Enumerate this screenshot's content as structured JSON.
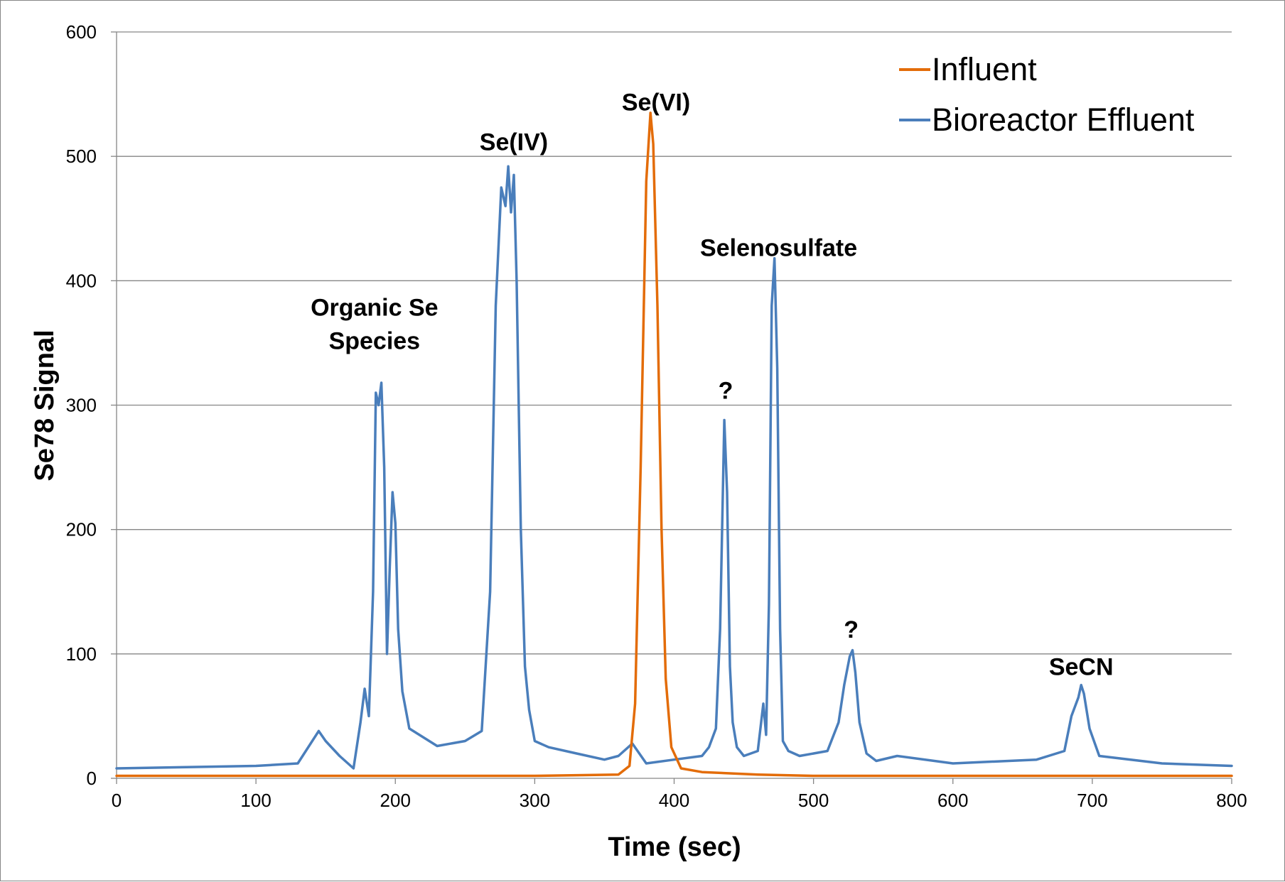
{
  "chart_data": {
    "type": "line",
    "title": "",
    "xlabel": "Time (sec)",
    "ylabel": "Se78 Signal",
    "xlim": [
      0,
      800
    ],
    "ylim": [
      0,
      600
    ],
    "x_ticks": [
      0,
      100,
      200,
      300,
      400,
      500,
      600,
      700,
      800
    ],
    "y_ticks": [
      0,
      100,
      200,
      300,
      400,
      500,
      600
    ],
    "x_tick_labels": [
      "0",
      "100",
      "200",
      "300",
      "400",
      "500",
      "600",
      "700",
      "800"
    ],
    "y_tick_labels": [
      "0",
      "100",
      "200",
      "300",
      "400",
      "500",
      "600"
    ],
    "grid": "horizontal",
    "legend_position": "top-right",
    "series": [
      {
        "name": "Influent",
        "color": "#E36C09",
        "x": [
          0,
          100,
          200,
          300,
          360,
          368,
          372,
          376,
          380,
          383,
          385,
          388,
          391,
          394,
          398,
          405,
          420,
          440,
          460,
          500,
          600,
          700,
          800
        ],
        "y": [
          2,
          2,
          2,
          2,
          3,
          10,
          60,
          250,
          480,
          535,
          510,
          380,
          200,
          80,
          25,
          8,
          5,
          4,
          3,
          2,
          2,
          2,
          2
        ]
      },
      {
        "name": "Bioreactor Effluent",
        "color": "#4A7EBB",
        "x": [
          0,
          50,
          100,
          130,
          145,
          150,
          160,
          170,
          175,
          178,
          181,
          184,
          186,
          188,
          190,
          192,
          194,
          196,
          198,
          200,
          202,
          205,
          210,
          230,
          250,
          262,
          268,
          272,
          276,
          279,
          281,
          283,
          285,
          287,
          290,
          293,
          296,
          300,
          310,
          330,
          350,
          360,
          370,
          380,
          400,
          420,
          425,
          430,
          433,
          436,
          438,
          440,
          442,
          445,
          450,
          460,
          464,
          466,
          468,
          470,
          472,
          474,
          476,
          478,
          482,
          490,
          510,
          518,
          522,
          526,
          528,
          530,
          533,
          538,
          545,
          560,
          600,
          660,
          680,
          685,
          690,
          692,
          694,
          698,
          705,
          750,
          800
        ],
        "y": [
          8,
          9,
          10,
          12,
          38,
          30,
          18,
          8,
          45,
          72,
          50,
          150,
          310,
          300,
          318,
          250,
          100,
          170,
          230,
          205,
          120,
          70,
          40,
          26,
          30,
          38,
          150,
          380,
          475,
          460,
          492,
          455,
          485,
          400,
          200,
          90,
          55,
          30,
          25,
          20,
          15,
          18,
          28,
          12,
          15,
          18,
          25,
          40,
          120,
          288,
          230,
          90,
          45,
          25,
          18,
          22,
          60,
          35,
          140,
          380,
          418,
          330,
          120,
          30,
          22,
          18,
          22,
          45,
          75,
          98,
          103,
          85,
          45,
          20,
          14,
          18,
          12,
          15,
          22,
          50,
          65,
          75,
          68,
          40,
          18,
          12,
          10
        ]
      }
    ],
    "annotations": [
      {
        "text": "Organic Se",
        "x": 185,
        "y": 372
      },
      {
        "text": "Species",
        "x": 185,
        "y": 345
      },
      {
        "text": "Se(IV)",
        "x": 285,
        "y": 505
      },
      {
        "text": "Se(VI)",
        "x": 387,
        "y": 537
      },
      {
        "text": "Selenosulfate",
        "x": 475,
        "y": 420
      },
      {
        "text": "?",
        "x": 437,
        "y": 305
      },
      {
        "text": "?",
        "x": 527,
        "y": 113
      },
      {
        "text": "SeCN",
        "x": 692,
        "y": 83
      }
    ]
  }
}
